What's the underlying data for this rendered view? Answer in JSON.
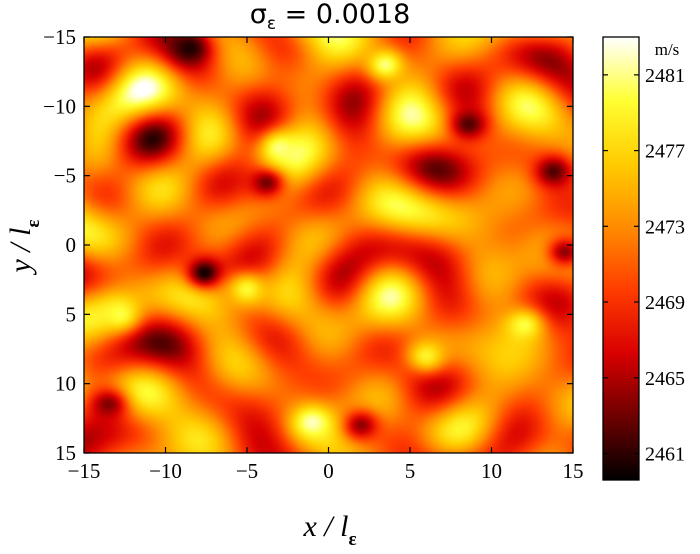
{
  "chart_data": {
    "type": "heatmap",
    "title": {
      "prefix": "σ",
      "subscript": "ε",
      "suffix": " = 0.0018"
    },
    "xlabel": {
      "main": "x",
      "slash": " / l",
      "subscript": "ε"
    },
    "ylabel": {
      "main": "y",
      "slash": " / l",
      "subscript": "ε"
    },
    "xlim": [
      -15,
      15
    ],
    "ylim": [
      -15,
      15
    ],
    "y_direction": "top-to-bottom",
    "xticks": [
      -15,
      -10,
      -5,
      0,
      5,
      10,
      15
    ],
    "yticks": [
      -15,
      -10,
      -5,
      0,
      5,
      10,
      15
    ],
    "xtick_labels": [
      "−15",
      "−10",
      "−5",
      "0",
      "5",
      "10",
      "15"
    ],
    "ytick_labels": [
      "−15",
      "−10",
      "−5",
      "0",
      "5",
      "10",
      "15"
    ],
    "colormap": "hot",
    "colormap_stops": [
      "#000000",
      "#6e0000",
      "#d80000",
      "#ff3c00",
      "#ff8c00",
      "#ffcc00",
      "#ffff33",
      "#ffffff"
    ],
    "colorbar": {
      "unit": "m/s",
      "range": [
        2459.6,
        2483
      ],
      "ticks": [
        2461,
        2465,
        2469,
        2473,
        2477,
        2481
      ],
      "tick_labels": [
        "2461",
        "2465",
        "2469",
        "2473",
        "2477",
        "2481"
      ]
    },
    "field": {
      "min": 2459.6,
      "max": 2483,
      "mean": 2472,
      "dark_spots": [
        {
          "x": -8.5,
          "y": -14.2,
          "value": 2460.5
        },
        {
          "x": -7.6,
          "y": 2.0,
          "value": 2460.0
        },
        {
          "x": 8.6,
          "y": -8.7,
          "value": 2462.0
        },
        {
          "x": 13.8,
          "y": -5.3,
          "value": 2462.0
        },
        {
          "x": -3.8,
          "y": -4.5,
          "value": 2463.0
        },
        {
          "x": -13.5,
          "y": 11.5,
          "value": 2463.5
        },
        {
          "x": 2.0,
          "y": 13.0,
          "value": 2464.0
        },
        {
          "x": 14.5,
          "y": 0.5,
          "value": 2464.0
        }
      ],
      "bright_spots": [
        {
          "x": -1.0,
          "y": 12.8,
          "value": 2482.0
        },
        {
          "x": -3.0,
          "y": -7.0,
          "value": 2481.0
        },
        {
          "x": 3.5,
          "y": -13.0,
          "value": 2481.0
        },
        {
          "x": -12.8,
          "y": 5.0,
          "value": 2480.0
        },
        {
          "x": 12.0,
          "y": 5.8,
          "value": 2480.0
        },
        {
          "x": -5.0,
          "y": 3.2,
          "value": 2479.5
        },
        {
          "x": 6.0,
          "y": 8.0,
          "value": 2479.0
        }
      ]
    }
  }
}
